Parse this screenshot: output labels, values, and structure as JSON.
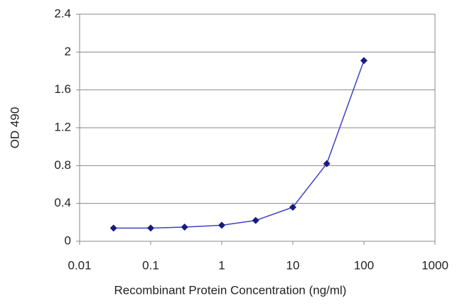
{
  "chart_data": {
    "type": "line",
    "x_label": "Recombinant Protein Concentration (ng/ml)",
    "y_label": "OD 490",
    "x": [
      0.03,
      0.1,
      0.3,
      1,
      3,
      10,
      30,
      100
    ],
    "values": [
      0.14,
      0.14,
      0.15,
      0.17,
      0.22,
      0.36,
      0.82,
      1.91
    ],
    "color": "#4040c8",
    "marker_color": "#1a1a80",
    "xscale": "log",
    "xlim": [
      0.01,
      1000
    ],
    "xticks": [
      0.01,
      0.1,
      1,
      10,
      100,
      1000
    ],
    "ylim": [
      0,
      2.4
    ],
    "yticks": [
      0,
      0.4,
      0.8,
      1.2,
      1.6,
      2,
      2.4
    ],
    "grid": true
  }
}
